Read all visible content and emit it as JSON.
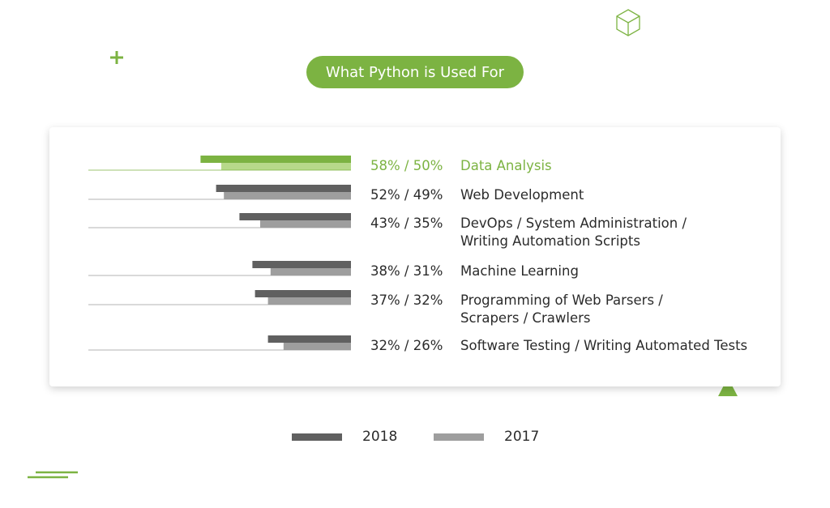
{
  "title": "What Python is Used For",
  "colors": {
    "accent": "#7cb342",
    "accent_light": "#b7d98a",
    "series_2018": "#606060",
    "series_2017": "#9e9e9e",
    "text": "#2b2b2b"
  },
  "legend": [
    {
      "label": "2018",
      "color": "#606060"
    },
    {
      "label": "2017",
      "color": "#9e9e9e"
    }
  ],
  "chart_data": {
    "type": "bar",
    "orientation": "horizontal",
    "categories": [
      [
        "Data Analysis"
      ],
      [
        "Web Development"
      ],
      [
        "DevOps / System Administration /",
        "Writing Automation Scripts"
      ],
      [
        "Machine Learning"
      ],
      [
        "Programming of Web Parsers /",
        "Scrapers / Crawlers"
      ],
      [
        "Software Testing / Writing Automated Tests"
      ]
    ],
    "value_labels": [
      "58% / 50%",
      "52% / 49%",
      "43% / 35%",
      "38% / 31%",
      "37% / 32%",
      "32% / 26%"
    ],
    "series": [
      {
        "name": "2018",
        "values": [
          58,
          52,
          43,
          38,
          37,
          32
        ]
      },
      {
        "name": "2017",
        "values": [
          50,
          49,
          35,
          31,
          32,
          26
        ]
      }
    ],
    "highlight_index": 0,
    "legend_position": "bottom"
  }
}
